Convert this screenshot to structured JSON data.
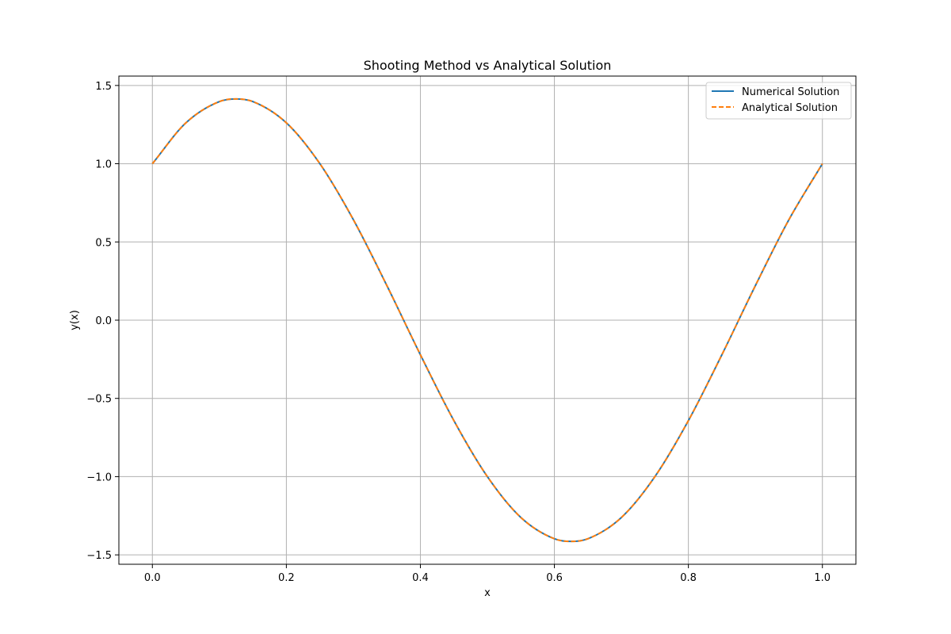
{
  "chart_data": {
    "type": "line",
    "title": "Shooting Method vs Analytical Solution",
    "xlabel": "x",
    "ylabel": "y(x)",
    "xlim": [
      -0.05,
      1.05
    ],
    "ylim": [
      -1.56,
      1.56
    ],
    "xticks": [
      0.0,
      0.2,
      0.4,
      0.6,
      0.8,
      1.0
    ],
    "xtick_labels": [
      "0.0",
      "0.2",
      "0.4",
      "0.6",
      "0.8",
      "1.0"
    ],
    "yticks": [
      -1.5,
      -1.0,
      -0.5,
      0.0,
      0.5,
      1.0,
      1.5
    ],
    "ytick_labels": [
      "−1.5",
      "−1.0",
      "−0.5",
      "0.0",
      "0.5",
      "1.0",
      "1.5"
    ],
    "grid": true,
    "legend_position": "top-right",
    "x": [
      0.0,
      0.05,
      0.1,
      0.125,
      0.15,
      0.2,
      0.25,
      0.3,
      0.35,
      0.4,
      0.45,
      0.5,
      0.55,
      0.6,
      0.625,
      0.65,
      0.7,
      0.75,
      0.8,
      0.85,
      0.9,
      0.95,
      1.0
    ],
    "series": [
      {
        "name": "Numerical Solution",
        "color": "#1f77b4",
        "style": "solid",
        "values": [
          1.0,
          1.261,
          1.397,
          1.414,
          1.397,
          1.261,
          1.0,
          0.642,
          0.221,
          -0.221,
          -0.642,
          -1.0,
          -1.261,
          -1.397,
          -1.414,
          -1.397,
          -1.261,
          -1.0,
          -0.642,
          -0.221,
          0.221,
          0.642,
          1.0
        ]
      },
      {
        "name": "Analytical Solution",
        "color": "#ff7f0e",
        "style": "dashed",
        "values": [
          1.0,
          1.261,
          1.397,
          1.414,
          1.397,
          1.261,
          1.0,
          0.642,
          0.221,
          -0.221,
          -0.642,
          -1.0,
          -1.261,
          -1.397,
          -1.414,
          -1.397,
          -1.261,
          -1.0,
          -0.642,
          -0.221,
          0.221,
          0.642,
          1.0
        ]
      }
    ]
  }
}
